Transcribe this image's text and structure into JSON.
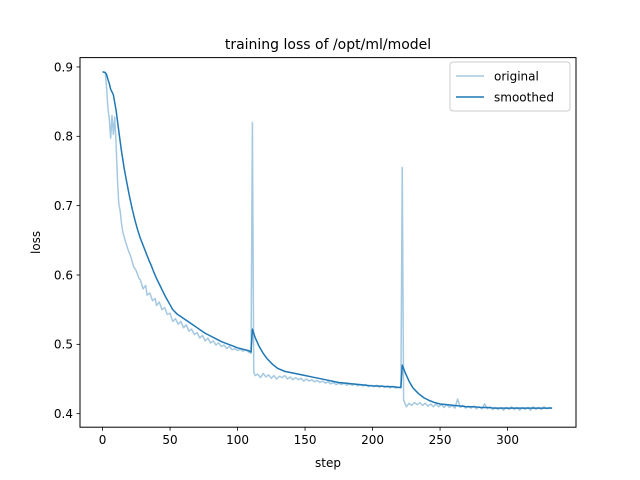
{
  "chart_data": {
    "type": "line",
    "title": "training loss of /opt/ml/model",
    "xlabel": "step",
    "ylabel": "loss",
    "xlim": [
      -16.7,
      350.7
    ],
    "ylim": [
      0.3805,
      0.9135
    ],
    "x_ticks": [
      0,
      50,
      100,
      150,
      200,
      250,
      300
    ],
    "y_ticks": [
      0.4,
      0.5,
      0.6,
      0.7,
      0.8,
      0.9
    ],
    "x_tick_labels": [
      "0",
      "50",
      "100",
      "150",
      "200",
      "250",
      "300"
    ],
    "y_tick_labels": [
      "0.4",
      "0.5",
      "0.6",
      "0.7",
      "0.8",
      "0.9"
    ],
    "grid": false,
    "legend": {
      "position": "top-right",
      "entries": [
        "original",
        "smoothed"
      ]
    },
    "series": [
      {
        "name": "original",
        "color": "#1f77b4",
        "opacity": 0.4,
        "points": [
          [
            0,
            0.893
          ],
          [
            2,
            0.892
          ],
          [
            3,
            0.87
          ],
          [
            4,
            0.84
          ],
          [
            5,
            0.825
          ],
          [
            6,
            0.797
          ],
          [
            7,
            0.83
          ],
          [
            8,
            0.803
          ],
          [
            9,
            0.828
          ],
          [
            10,
            0.79
          ],
          [
            11,
            0.74
          ],
          [
            12,
            0.703
          ],
          [
            13,
            0.693
          ],
          [
            14,
            0.675
          ],
          [
            15,
            0.662
          ],
          [
            17,
            0.648
          ],
          [
            19,
            0.636
          ],
          [
            21,
            0.626
          ],
          [
            23,
            0.612
          ],
          [
            25,
            0.606
          ],
          [
            27,
            0.595
          ],
          [
            28,
            0.593
          ],
          [
            30,
            0.58
          ],
          [
            32,
            0.585
          ],
          [
            33,
            0.571
          ],
          [
            35,
            0.574
          ],
          [
            37,
            0.563
          ],
          [
            39,
            0.566
          ],
          [
            40,
            0.556
          ],
          [
            42,
            0.561
          ],
          [
            44,
            0.55
          ],
          [
            46,
            0.553
          ],
          [
            48,
            0.543
          ],
          [
            50,
            0.545
          ],
          [
            52,
            0.533
          ],
          [
            54,
            0.537
          ],
          [
            56,
            0.529
          ],
          [
            58,
            0.533
          ],
          [
            60,
            0.524
          ],
          [
            62,
            0.528
          ],
          [
            64,
            0.519
          ],
          [
            66,
            0.522
          ],
          [
            68,
            0.514
          ],
          [
            70,
            0.517
          ],
          [
            72,
            0.509
          ],
          [
            74,
            0.513
          ],
          [
            76,
            0.505
          ],
          [
            78,
            0.509
          ],
          [
            80,
            0.502
          ],
          [
            82,
            0.505
          ],
          [
            84,
            0.499
          ],
          [
            86,
            0.502
          ],
          [
            88,
            0.497
          ],
          [
            90,
            0.499
          ],
          [
            92,
            0.494
          ],
          [
            94,
            0.497
          ],
          [
            96,
            0.492
          ],
          [
            98,
            0.494
          ],
          [
            100,
            0.491
          ],
          [
            102,
            0.493
          ],
          [
            104,
            0.49
          ],
          [
            106,
            0.492
          ],
          [
            108,
            0.489
          ],
          [
            110,
            0.487
          ],
          [
            111,
            0.82
          ],
          [
            112,
            0.46
          ],
          [
            113,
            0.455
          ],
          [
            115,
            0.457
          ],
          [
            117,
            0.452
          ],
          [
            119,
            0.458
          ],
          [
            121,
            0.453
          ],
          [
            123,
            0.456
          ],
          [
            125,
            0.451
          ],
          [
            127,
            0.455
          ],
          [
            129,
            0.45
          ],
          [
            131,
            0.454
          ],
          [
            133,
            0.452
          ],
          [
            135,
            0.455
          ],
          [
            137,
            0.45
          ],
          [
            139,
            0.453
          ],
          [
            141,
            0.449
          ],
          [
            143,
            0.452
          ],
          [
            145,
            0.449
          ],
          [
            147,
            0.451
          ],
          [
            149,
            0.447
          ],
          [
            151,
            0.45
          ],
          [
            153,
            0.447
          ],
          [
            155,
            0.449
          ],
          [
            157,
            0.446
          ],
          [
            159,
            0.448
          ],
          [
            161,
            0.445
          ],
          [
            163,
            0.447
          ],
          [
            165,
            0.444
          ],
          [
            167,
            0.446
          ],
          [
            169,
            0.443
          ],
          [
            171,
            0.445
          ],
          [
            173,
            0.442
          ],
          [
            175,
            0.444
          ],
          [
            177,
            0.442
          ],
          [
            179,
            0.444
          ],
          [
            181,
            0.441
          ],
          [
            183,
            0.443
          ],
          [
            185,
            0.441
          ],
          [
            187,
            0.443
          ],
          [
            189,
            0.44
          ],
          [
            191,
            0.442
          ],
          [
            193,
            0.44
          ],
          [
            195,
            0.442
          ],
          [
            197,
            0.439
          ],
          [
            199,
            0.441
          ],
          [
            201,
            0.439
          ],
          [
            203,
            0.441
          ],
          [
            205,
            0.438
          ],
          [
            207,
            0.44
          ],
          [
            209,
            0.438
          ],
          [
            211,
            0.44
          ],
          [
            213,
            0.437
          ],
          [
            215,
            0.439
          ],
          [
            217,
            0.437
          ],
          [
            219,
            0.438
          ],
          [
            221,
            0.437
          ],
          [
            222,
            0.755
          ],
          [
            223,
            0.42
          ],
          [
            225,
            0.41
          ],
          [
            227,
            0.415
          ],
          [
            229,
            0.412
          ],
          [
            231,
            0.416
          ],
          [
            233,
            0.413
          ],
          [
            235,
            0.416
          ],
          [
            237,
            0.412
          ],
          [
            239,
            0.415
          ],
          [
            241,
            0.411
          ],
          [
            243,
            0.414
          ],
          [
            245,
            0.41
          ],
          [
            247,
            0.414
          ],
          [
            249,
            0.41
          ],
          [
            251,
            0.413
          ],
          [
            253,
            0.409
          ],
          [
            255,
            0.413
          ],
          [
            257,
            0.409
          ],
          [
            259,
            0.412
          ],
          [
            261,
            0.408
          ],
          [
            263,
            0.421
          ],
          [
            265,
            0.409
          ],
          [
            267,
            0.412
          ],
          [
            269,
            0.408
          ],
          [
            271,
            0.411
          ],
          [
            273,
            0.408
          ],
          [
            275,
            0.411
          ],
          [
            277,
            0.407
          ],
          [
            279,
            0.41
          ],
          [
            281,
            0.407
          ],
          [
            283,
            0.414
          ],
          [
            285,
            0.407
          ],
          [
            287,
            0.41
          ],
          [
            289,
            0.406
          ],
          [
            291,
            0.409
          ],
          [
            293,
            0.406
          ],
          [
            295,
            0.409
          ],
          [
            297,
            0.405
          ],
          [
            299,
            0.409
          ],
          [
            301,
            0.406
          ],
          [
            303,
            0.41
          ],
          [
            305,
            0.406
          ],
          [
            307,
            0.409
          ],
          [
            309,
            0.405
          ],
          [
            311,
            0.409
          ],
          [
            313,
            0.406
          ],
          [
            315,
            0.409
          ],
          [
            317,
            0.405
          ],
          [
            319,
            0.41
          ],
          [
            321,
            0.406
          ],
          [
            323,
            0.409
          ],
          [
            325,
            0.406
          ],
          [
            327,
            0.41
          ],
          [
            329,
            0.407
          ],
          [
            331,
            0.409
          ],
          [
            333,
            0.408
          ]
        ]
      },
      {
        "name": "smoothed",
        "color": "#1f77b4",
        "opacity": 1,
        "points": [
          [
            0,
            0.893
          ],
          [
            2,
            0.892
          ],
          [
            3,
            0.889
          ],
          [
            4,
            0.882
          ],
          [
            5,
            0.876
          ],
          [
            6,
            0.868
          ],
          [
            8,
            0.86
          ],
          [
            10,
            0.838
          ],
          [
            12,
            0.808
          ],
          [
            14,
            0.779
          ],
          [
            16,
            0.754
          ],
          [
            18,
            0.733
          ],
          [
            20,
            0.713
          ],
          [
            22,
            0.695
          ],
          [
            24,
            0.679
          ],
          [
            26,
            0.665
          ],
          [
            28,
            0.653
          ],
          [
            30,
            0.643
          ],
          [
            32,
            0.633
          ],
          [
            34,
            0.623
          ],
          [
            36,
            0.614
          ],
          [
            38,
            0.604
          ],
          [
            40,
            0.595
          ],
          [
            42,
            0.587
          ],
          [
            44,
            0.579
          ],
          [
            46,
            0.571
          ],
          [
            48,
            0.564
          ],
          [
            50,
            0.557
          ],
          [
            52,
            0.55
          ],
          [
            55,
            0.544
          ],
          [
            58,
            0.54
          ],
          [
            61,
            0.536
          ],
          [
            64,
            0.532
          ],
          [
            67,
            0.528
          ],
          [
            70,
            0.524
          ],
          [
            73,
            0.52
          ],
          [
            76,
            0.516
          ],
          [
            80,
            0.512
          ],
          [
            84,
            0.508
          ],
          [
            88,
            0.504
          ],
          [
            92,
            0.501
          ],
          [
            96,
            0.498
          ],
          [
            100,
            0.495
          ],
          [
            104,
            0.493
          ],
          [
            108,
            0.491
          ],
          [
            110,
            0.489
          ],
          [
            111,
            0.522
          ],
          [
            113,
            0.51
          ],
          [
            116,
            0.497
          ],
          [
            119,
            0.487
          ],
          [
            122,
            0.479
          ],
          [
            126,
            0.471
          ],
          [
            130,
            0.465
          ],
          [
            135,
            0.461
          ],
          [
            140,
            0.459
          ],
          [
            145,
            0.457
          ],
          [
            150,
            0.455
          ],
          [
            155,
            0.453
          ],
          [
            160,
            0.451
          ],
          [
            165,
            0.449
          ],
          [
            170,
            0.447
          ],
          [
            175,
            0.445
          ],
          [
            180,
            0.444
          ],
          [
            185,
            0.443
          ],
          [
            190,
            0.442
          ],
          [
            195,
            0.441
          ],
          [
            200,
            0.44
          ],
          [
            205,
            0.44
          ],
          [
            210,
            0.439
          ],
          [
            215,
            0.439
          ],
          [
            219,
            0.438
          ],
          [
            221,
            0.438
          ],
          [
            222,
            0.47
          ],
          [
            224,
            0.46
          ],
          [
            227,
            0.447
          ],
          [
            230,
            0.437
          ],
          [
            234,
            0.429
          ],
          [
            238,
            0.423
          ],
          [
            242,
            0.419
          ],
          [
            246,
            0.416
          ],
          [
            250,
            0.414
          ],
          [
            255,
            0.413
          ],
          [
            260,
            0.412
          ],
          [
            265,
            0.411
          ],
          [
            270,
            0.41
          ],
          [
            275,
            0.41
          ],
          [
            280,
            0.409
          ],
          [
            285,
            0.409
          ],
          [
            290,
            0.408
          ],
          [
            295,
            0.408
          ],
          [
            300,
            0.408
          ],
          [
            305,
            0.408
          ],
          [
            310,
            0.408
          ],
          [
            315,
            0.408
          ],
          [
            320,
            0.408
          ],
          [
            325,
            0.408
          ],
          [
            330,
            0.408
          ],
          [
            333,
            0.408
          ]
        ]
      }
    ]
  }
}
